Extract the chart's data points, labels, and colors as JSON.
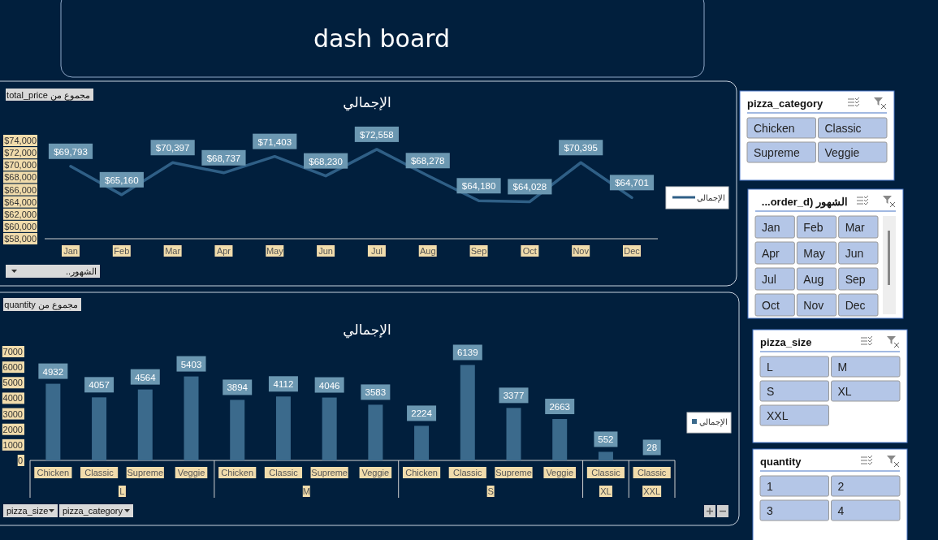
{
  "chart_data": [
    {
      "type": "other",
      "title": "dash board"
    },
    {
      "type": "line",
      "title": "الإجمالي",
      "categories": [
        "Jan",
        "Feb",
        "Mar",
        "Apr",
        "May",
        "Jun",
        "Jul",
        "Aug",
        "Sep",
        "Oct",
        "Nov",
        "Dec"
      ],
      "series": [
        {
          "name": "الإجمالي",
          "color": "#2f5f86",
          "values": [
            69793,
            65160,
            70397,
            68737,
            71403,
            68230,
            72558,
            68278,
            64180,
            64028,
            70395,
            64701
          ],
          "value_labels": [
            "$69,793",
            "$65,160",
            "$70,397",
            "$68,737",
            "$71,403",
            "$68,230",
            "$72,558",
            "$68,278",
            "$64,180",
            "$64,028",
            "$70,395",
            "$64,701"
          ]
        }
      ],
      "ylim": [
        58000,
        74000
      ],
      "yticks": [
        {
          "value": 58000,
          "label": "$58,000"
        },
        {
          "value": 60000,
          "label": "$60,000"
        },
        {
          "value": 62000,
          "label": "$62,000"
        },
        {
          "value": 64000,
          "label": "$64,000"
        },
        {
          "value": 66000,
          "label": "$66,000"
        },
        {
          "value": 68000,
          "label": "$68,000"
        },
        {
          "value": 70000,
          "label": "$70,000"
        },
        {
          "value": 72000,
          "label": "$72,000"
        },
        {
          "value": 74000,
          "label": "$74,000"
        }
      ],
      "grid": false,
      "legend": "right",
      "marker": "none",
      "line_style": "solid",
      "annotations": [
        "مجموع من total_price",
        "الشهور.."
      ]
    },
    {
      "type": "bar",
      "title": "الإجمالي",
      "categories": [
        "Chicken",
        "Classic",
        "Supreme",
        "Veggie",
        "Chicken",
        "Classic",
        "Supreme",
        "Veggie",
        "Chicken",
        "Classic",
        "Supreme",
        "Veggie",
        "Classic",
        "Classic"
      ],
      "series": [
        {
          "name": "الإجمالي",
          "color": "#3b6a8c",
          "values": [
            4932,
            4057,
            4564,
            5403,
            3894,
            4112,
            4046,
            3583,
            2224,
            6139,
            3377,
            2663,
            552,
            28
          ]
        }
      ],
      "ylim": [
        0,
        7000
      ],
      "yticks": [
        0,
        1000,
        2000,
        3000,
        4000,
        5000,
        6000,
        7000
      ],
      "grid": false,
      "legend": "right",
      "data_labels": true,
      "annotations": [
        "مجموع من quantity",
        "pizza_size",
        "pizza_category",
        "L",
        "M",
        "S",
        "XL",
        "XXL"
      ]
    },
    {
      "type": "other",
      "title": "pizza_category",
      "annotations": [
        "Chicken",
        "Classic",
        "Supreme",
        "Veggie"
      ]
    },
    {
      "type": "other",
      "title": "الشهور (order_d...",
      "annotations": [
        "Jan",
        "Feb",
        "Mar",
        "Apr",
        "May",
        "Jun",
        "Jul",
        "Aug",
        "Sep",
        "Oct",
        "Nov",
        "Dec"
      ]
    },
    {
      "type": "other",
      "title": "pizza_size",
      "annotations": [
        "L",
        "M",
        "S",
        "XL",
        "XXL"
      ]
    },
    {
      "type": "other",
      "title": "quantity",
      "annotations": [
        "1",
        "2",
        "3",
        "4"
      ]
    }
  ]
}
